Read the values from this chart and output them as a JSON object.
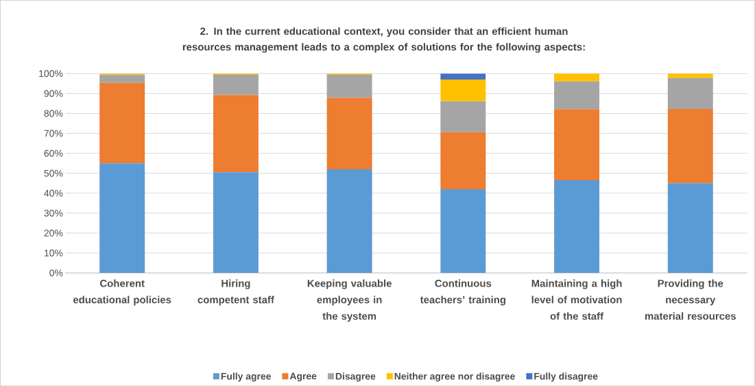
{
  "chart_data": {
    "type": "bar",
    "stacked": true,
    "title": "2. In the current educational context, you consider that an efficient human resources management leads to a complex of solutions for the following aspects:",
    "categories": [
      "Coherent educational policies",
      "Hiring competent staff",
      "Keeping valuable employees in the system",
      "Continuous teachers’ training",
      "Maintaining a high level of motivation of the staff",
      "Providing the necessary material resources"
    ],
    "series": [
      {
        "name": "Fully agree",
        "color": "#5b9bd5",
        "values": [
          55,
          50.5,
          52,
          42,
          46.5,
          45
        ]
      },
      {
        "name": "Agree",
        "color": "#ed7d31",
        "values": [
          40.4,
          38.8,
          35.9,
          28.6,
          35.6,
          37.2
        ]
      },
      {
        "name": "Disagree",
        "color": "#a5a5a5",
        "values": [
          3.9,
          10.1,
          11.5,
          15.5,
          14,
          15.6
        ]
      },
      {
        "name": "Neither agree nor disagree",
        "color": "#ffc000",
        "values": [
          0.7,
          0.6,
          0.6,
          10.9,
          3.9,
          2.2
        ]
      },
      {
        "name": "Fully disagree",
        "color": "#4472c4",
        "values": [
          0,
          0,
          0,
          3,
          0,
          0
        ]
      }
    ],
    "ylim": [
      0,
      100
    ],
    "yticks": [
      {
        "value": 0,
        "label": "0%"
      },
      {
        "value": 10,
        "label": "10%"
      },
      {
        "value": 20,
        "label": "20%"
      },
      {
        "value": 30,
        "label": "30%"
      },
      {
        "value": 40,
        "label": "40%"
      },
      {
        "value": 50,
        "label": "50%"
      },
      {
        "value": 60,
        "label": "60%"
      },
      {
        "value": 70,
        "label": "70%"
      },
      {
        "value": 80,
        "label": "80%"
      },
      {
        "value": 90,
        "label": "90%"
      },
      {
        "value": 100,
        "label": "100%"
      }
    ],
    "grid": "y",
    "legend": "bottom"
  }
}
